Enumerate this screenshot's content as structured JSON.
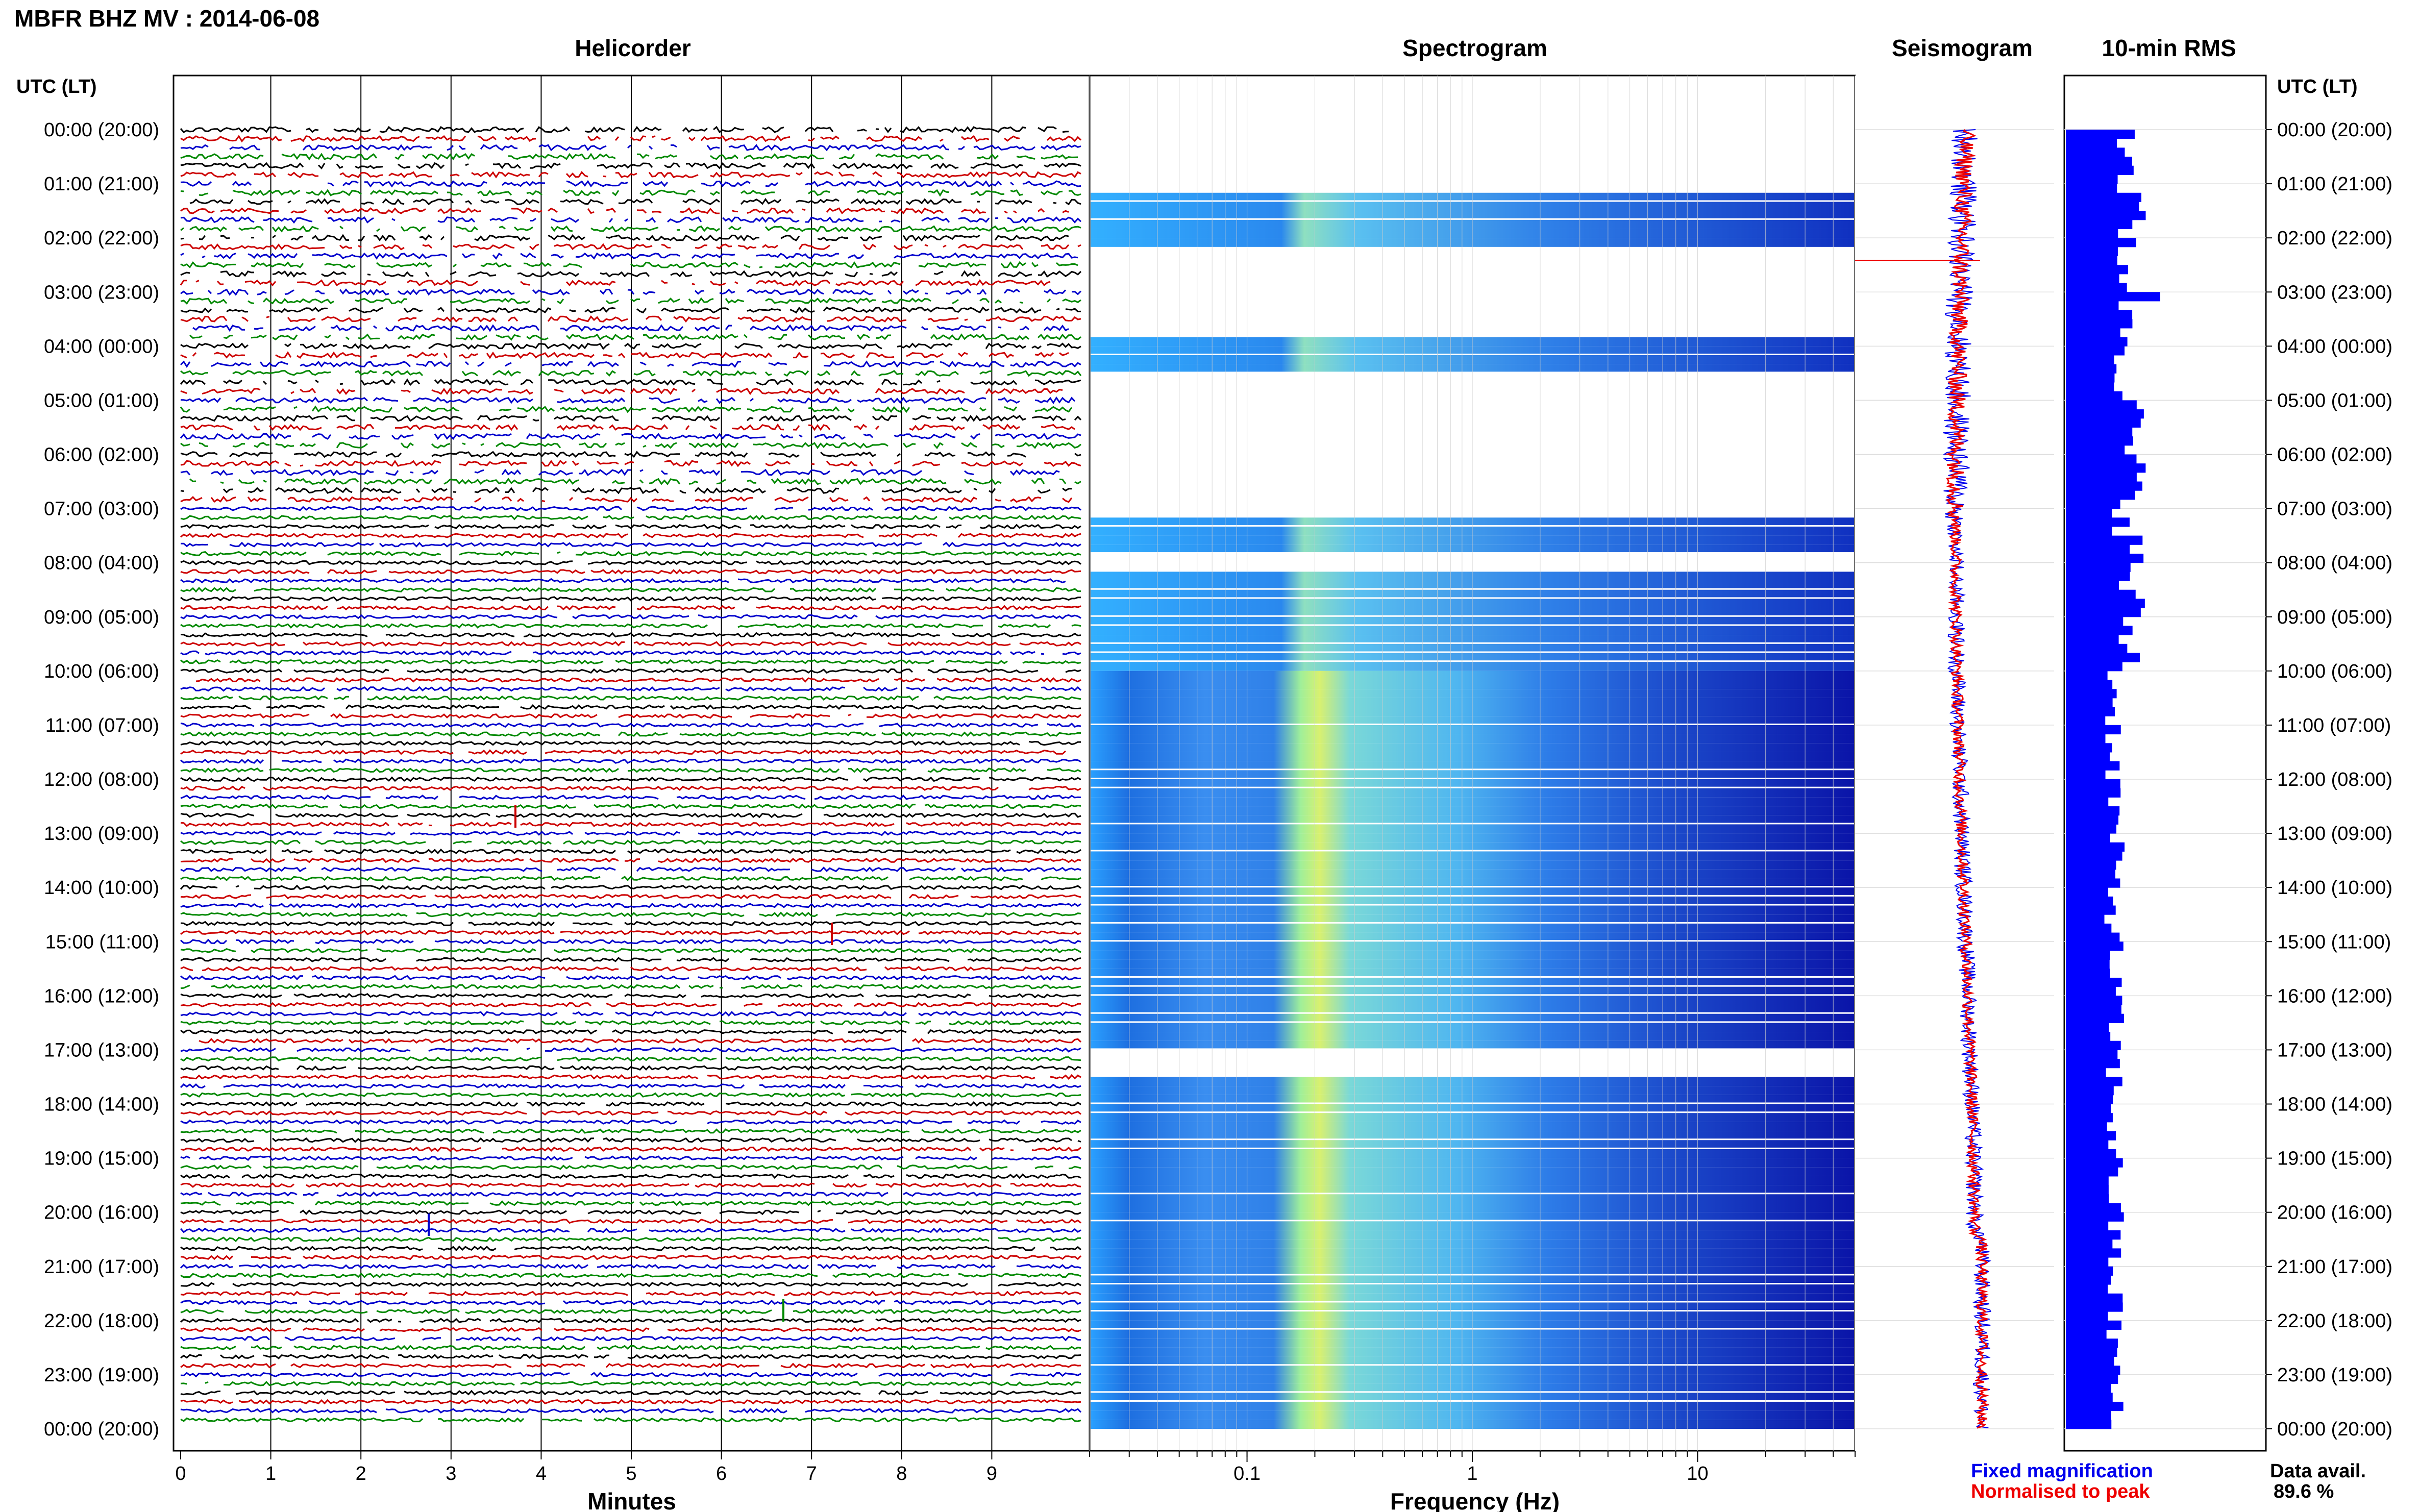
{
  "page_title": "MBFR BHZ MV : 2014-06-08",
  "left_axis_header": "UTC (LT)",
  "right_axis_header": "UTC (LT)",
  "panels": {
    "helicorder": "Helicorder",
    "spectrogram": "Spectrogram",
    "seismogram": "Seismogram",
    "rms": "10-min RMS"
  },
  "time_labels": [
    "00:00 (20:00)",
    "01:00 (21:00)",
    "02:00 (22:00)",
    "03:00 (23:00)",
    "04:00 (00:00)",
    "05:00 (01:00)",
    "06:00 (02:00)",
    "07:00 (03:00)",
    "08:00 (04:00)",
    "09:00 (05:00)",
    "10:00 (06:00)",
    "11:00 (07:00)",
    "12:00 (08:00)",
    "13:00 (09:00)",
    "14:00 (10:00)",
    "15:00 (11:00)",
    "16:00 (12:00)",
    "17:00 (13:00)",
    "18:00 (14:00)",
    "19:00 (15:00)",
    "20:00 (16:00)",
    "21:00 (17:00)",
    "22:00 (18:00)",
    "23:00 (19:00)",
    "00:00 (20:00)"
  ],
  "legend": {
    "fixed": "Fixed magnification",
    "normalised": "Normalised to peak",
    "fixed_color": "#0000ee",
    "normalised_color": "#ee0000"
  },
  "data_avail": {
    "label": "Data avail.",
    "value": "89.6 %"
  },
  "chart_data": [
    {
      "type": "line",
      "name": "Helicorder",
      "title": "Helicorder",
      "xlabel": "Minutes",
      "ylabel": "UTC (LT)",
      "x_ticks": [
        "0",
        "1",
        "2",
        "3",
        "4",
        "5",
        "6",
        "7",
        "8",
        "9"
      ],
      "xlim": [
        0,
        10
      ],
      "lines_per_hour": 6,
      "trace_colors": [
        "#000000",
        "#cc0000",
        "#0000cc",
        "#008800"
      ]
    },
    {
      "type": "heatmap",
      "name": "Spectrogram",
      "title": "Spectrogram",
      "xlabel": "Frequency (Hz)",
      "x_scale": "log",
      "xlim": [
        0.02,
        50
      ],
      "x_ticks": [
        "0.1",
        "1",
        "10"
      ],
      "x_tick_values": [
        0.1,
        1,
        10
      ],
      "colormap": "jet",
      "peak_energy_band_hz": [
        0.2,
        0.3
      ]
    },
    {
      "type": "line",
      "name": "Seismogram",
      "title": "Seismogram",
      "series": [
        {
          "name": "Fixed magnification",
          "color": "#0000ee"
        },
        {
          "name": "Normalised to peak",
          "color": "#ee0000"
        }
      ]
    },
    {
      "type": "bar",
      "name": "10-min RMS",
      "title": "10-min RMS",
      "orientation": "horizontal",
      "color": "#0000ff",
      "bins_per_hour": 6
    }
  ]
}
